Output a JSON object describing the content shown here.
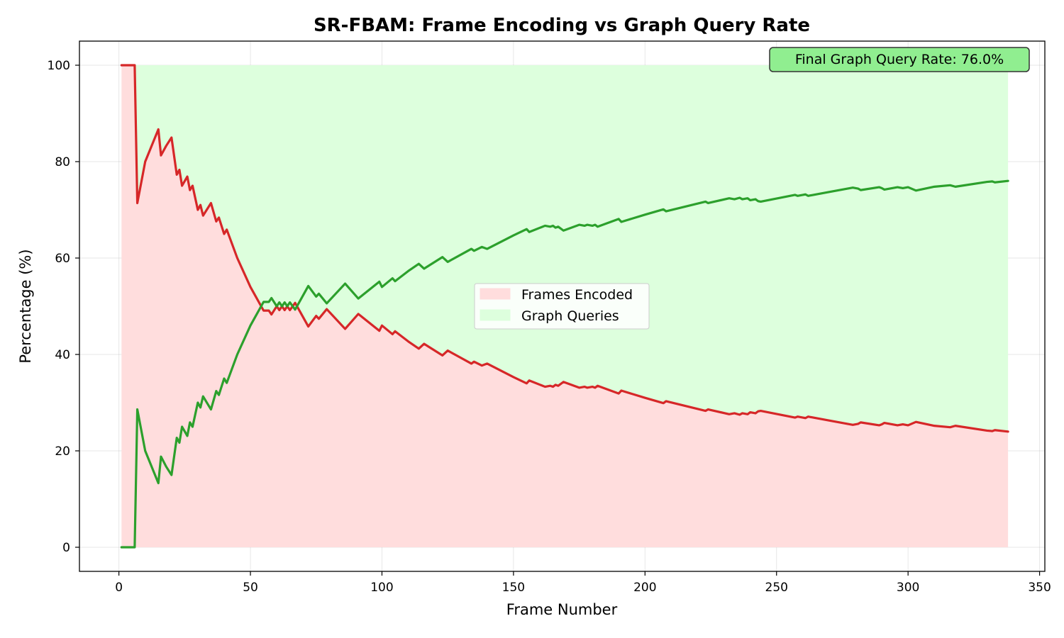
{
  "chart_data": {
    "type": "area",
    "title": "SR-FBAM: Frame Encoding vs Graph Query Rate",
    "xlabel": "Frame Number",
    "ylabel": "Percentage (%)",
    "xlim": [
      -15,
      352
    ],
    "ylim": [
      -5,
      105
    ],
    "xticks": [
      0,
      50,
      100,
      150,
      200,
      250,
      300,
      350
    ],
    "yticks": [
      0,
      20,
      40,
      60,
      80,
      100
    ],
    "grid": true,
    "legend": "center",
    "x": [
      1,
      5,
      6,
      7,
      10,
      15,
      16,
      18,
      20,
      22,
      23,
      24,
      26,
      27,
      28,
      30,
      31,
      32,
      35,
      37,
      38,
      40,
      41,
      45,
      50,
      55,
      57,
      58,
      60,
      61,
      62,
      63,
      64,
      65,
      67,
      72,
      75,
      76,
      79,
      86,
      91,
      99,
      100,
      104,
      105,
      110,
      114,
      116,
      123,
      125,
      134,
      135,
      138,
      140,
      150,
      155,
      156,
      162,
      164,
      165,
      166,
      167,
      169,
      175,
      177,
      178,
      180,
      181,
      182,
      190,
      191,
      200,
      207,
      208,
      223,
      224,
      232,
      234,
      236,
      237,
      239,
      240,
      242,
      243,
      244,
      257,
      258,
      260,
      261,
      262,
      270,
      279,
      281,
      282,
      289,
      290,
      291,
      296,
      298,
      300,
      303,
      310,
      316,
      318,
      330,
      332,
      333,
      338
    ],
    "series": [
      {
        "name": "Frames Encoded",
        "color": "#d62728",
        "fill": "#ffdddd",
        "values": [
          100,
          100,
          100,
          71.4,
          80,
          86.7,
          81.3,
          83.3,
          85,
          77.3,
          78.3,
          75,
          76.9,
          74.1,
          75,
          70,
          71,
          68.8,
          71.4,
          67.6,
          68.4,
          65,
          65.9,
          60,
          54,
          49.1,
          49.1,
          48.3,
          50,
          49.2,
          50,
          49.2,
          50,
          49.2,
          50.7,
          45.8,
          48,
          47.4,
          49.4,
          45.3,
          48.4,
          44.9,
          46,
          44.2,
          44.8,
          42.7,
          41.2,
          42.2,
          39.8,
          40.8,
          38.1,
          38.5,
          37.7,
          38.1,
          35.3,
          34,
          34.6,
          33.3,
          33.5,
          33.3,
          33.7,
          33.5,
          34.3,
          33.1,
          33.3,
          33.1,
          33.3,
          33.1,
          33.5,
          31.9,
          32.5,
          31,
          29.9,
          30.3,
          28.3,
          28.6,
          27.6,
          27.8,
          27.5,
          27.8,
          27.6,
          28,
          27.8,
          28.2,
          28.3,
          26.9,
          27.1,
          26.9,
          26.8,
          27.1,
          26.3,
          25.4,
          25.6,
          25.9,
          25.3,
          25.5,
          25.8,
          25.3,
          25.5,
          25.3,
          26,
          25.2,
          24.9,
          25.2,
          24.2,
          24.1,
          24.3,
          24
        ]
      },
      {
        "name": "Graph Queries",
        "color": "#2ca02c",
        "fill": "#ddffdd",
        "values": [
          0,
          0,
          0,
          28.6,
          20,
          13.3,
          18.8,
          16.7,
          15,
          22.7,
          21.7,
          25,
          23.1,
          25.9,
          25,
          30,
          29,
          31.3,
          28.6,
          32.4,
          31.6,
          35,
          34.1,
          40,
          46,
          50.9,
          50.9,
          51.7,
          50,
          50.8,
          50,
          50.8,
          50,
          50.8,
          49.3,
          54.2,
          52,
          52.6,
          50.6,
          54.7,
          51.6,
          55.1,
          54,
          55.8,
          55.2,
          57.3,
          58.8,
          57.8,
          60.2,
          59.2,
          61.9,
          61.5,
          62.3,
          61.9,
          64.7,
          66,
          65.4,
          66.7,
          66.5,
          66.7,
          66.3,
          66.5,
          65.7,
          66.9,
          66.7,
          66.9,
          66.7,
          66.9,
          66.5,
          68.1,
          67.5,
          69,
          70.1,
          69.7,
          71.7,
          71.4,
          72.4,
          72.2,
          72.5,
          72.2,
          72.4,
          72,
          72.2,
          71.8,
          71.7,
          73.1,
          72.9,
          73.1,
          73.2,
          72.9,
          73.7,
          74.6,
          74.4,
          74.1,
          74.7,
          74.5,
          74.2,
          74.7,
          74.5,
          74.7,
          74,
          74.8,
          75.1,
          74.8,
          75.8,
          75.9,
          75.7,
          76
        ]
      }
    ],
    "annotation": "Final Graph Query Rate: 76.0%",
    "annotation_color": "#90ee90"
  }
}
